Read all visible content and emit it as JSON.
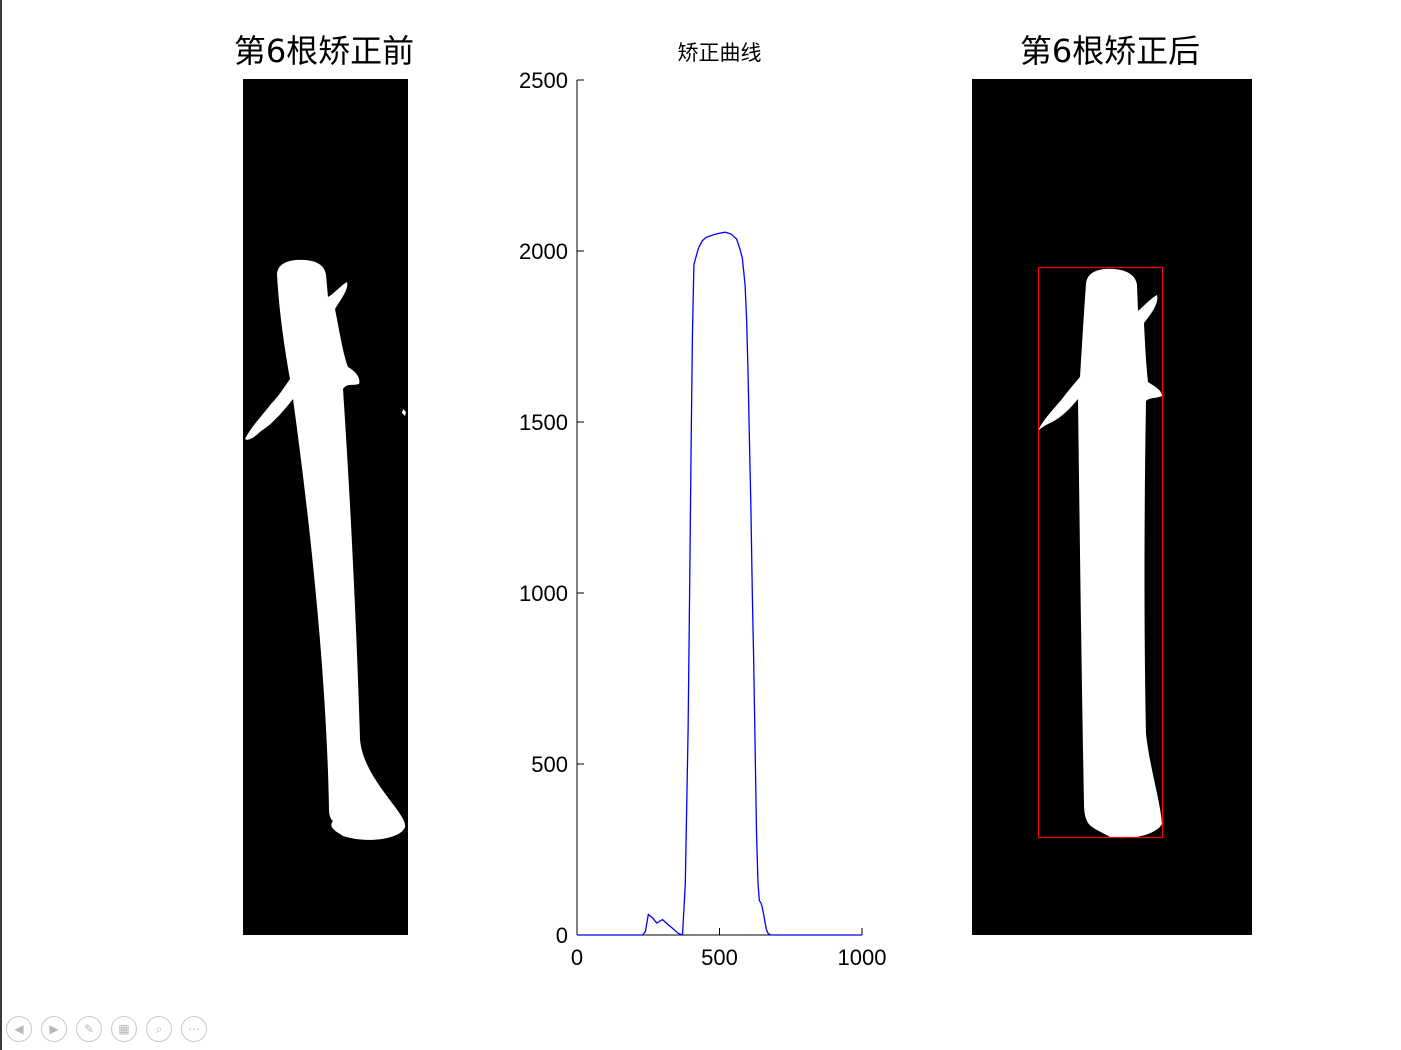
{
  "panels": {
    "before": {
      "title": "第6根矫正前"
    },
    "after": {
      "title": "第6根矫正后"
    }
  },
  "chart_data": {
    "type": "line",
    "title": "矫正曲线",
    "xlabel": "",
    "ylabel": "",
    "xlim": [
      0,
      1000
    ],
    "ylim": [
      0,
      2500
    ],
    "xticks": [
      0,
      500,
      1000
    ],
    "yticks": [
      0,
      500,
      1000,
      1500,
      2000,
      2500
    ],
    "grid": false,
    "series": [
      {
        "color": "#0000ff",
        "x": [
          0,
          230,
          240,
          250,
          265,
          280,
          300,
          320,
          335,
          355,
          370,
          380,
          390,
          395,
          400,
          405,
          410,
          415,
          420,
          425,
          430,
          440,
          450,
          460,
          470,
          480,
          500,
          520,
          540,
          560,
          570,
          580,
          590,
          595,
          600,
          605,
          610,
          615,
          620,
          625,
          630,
          635,
          640,
          645,
          650,
          655,
          660,
          665,
          670,
          680,
          700,
          1000
        ],
        "y": [
          0,
          0,
          10,
          60,
          50,
          35,
          45,
          30,
          20,
          5,
          0,
          150,
          600,
          1000,
          1400,
          1750,
          1960,
          1975,
          1990,
          2005,
          2015,
          2030,
          2038,
          2042,
          2045,
          2048,
          2052,
          2055,
          2050,
          2035,
          2010,
          1980,
          1900,
          1800,
          1650,
          1450,
          1250,
          1000,
          800,
          550,
          300,
          150,
          100,
          95,
          80,
          60,
          35,
          15,
          5,
          0,
          0,
          0
        ]
      }
    ]
  },
  "controls": [
    {
      "name": "prev-slide-button",
      "glyph": "◀"
    },
    {
      "name": "next-slide-button",
      "glyph": "▶"
    },
    {
      "name": "pen-tool-button",
      "glyph": "✎"
    },
    {
      "name": "slide-sorter-button",
      "glyph": "▦"
    },
    {
      "name": "zoom-button",
      "glyph": "⌕"
    },
    {
      "name": "more-options-button",
      "glyph": "⋯"
    }
  ]
}
